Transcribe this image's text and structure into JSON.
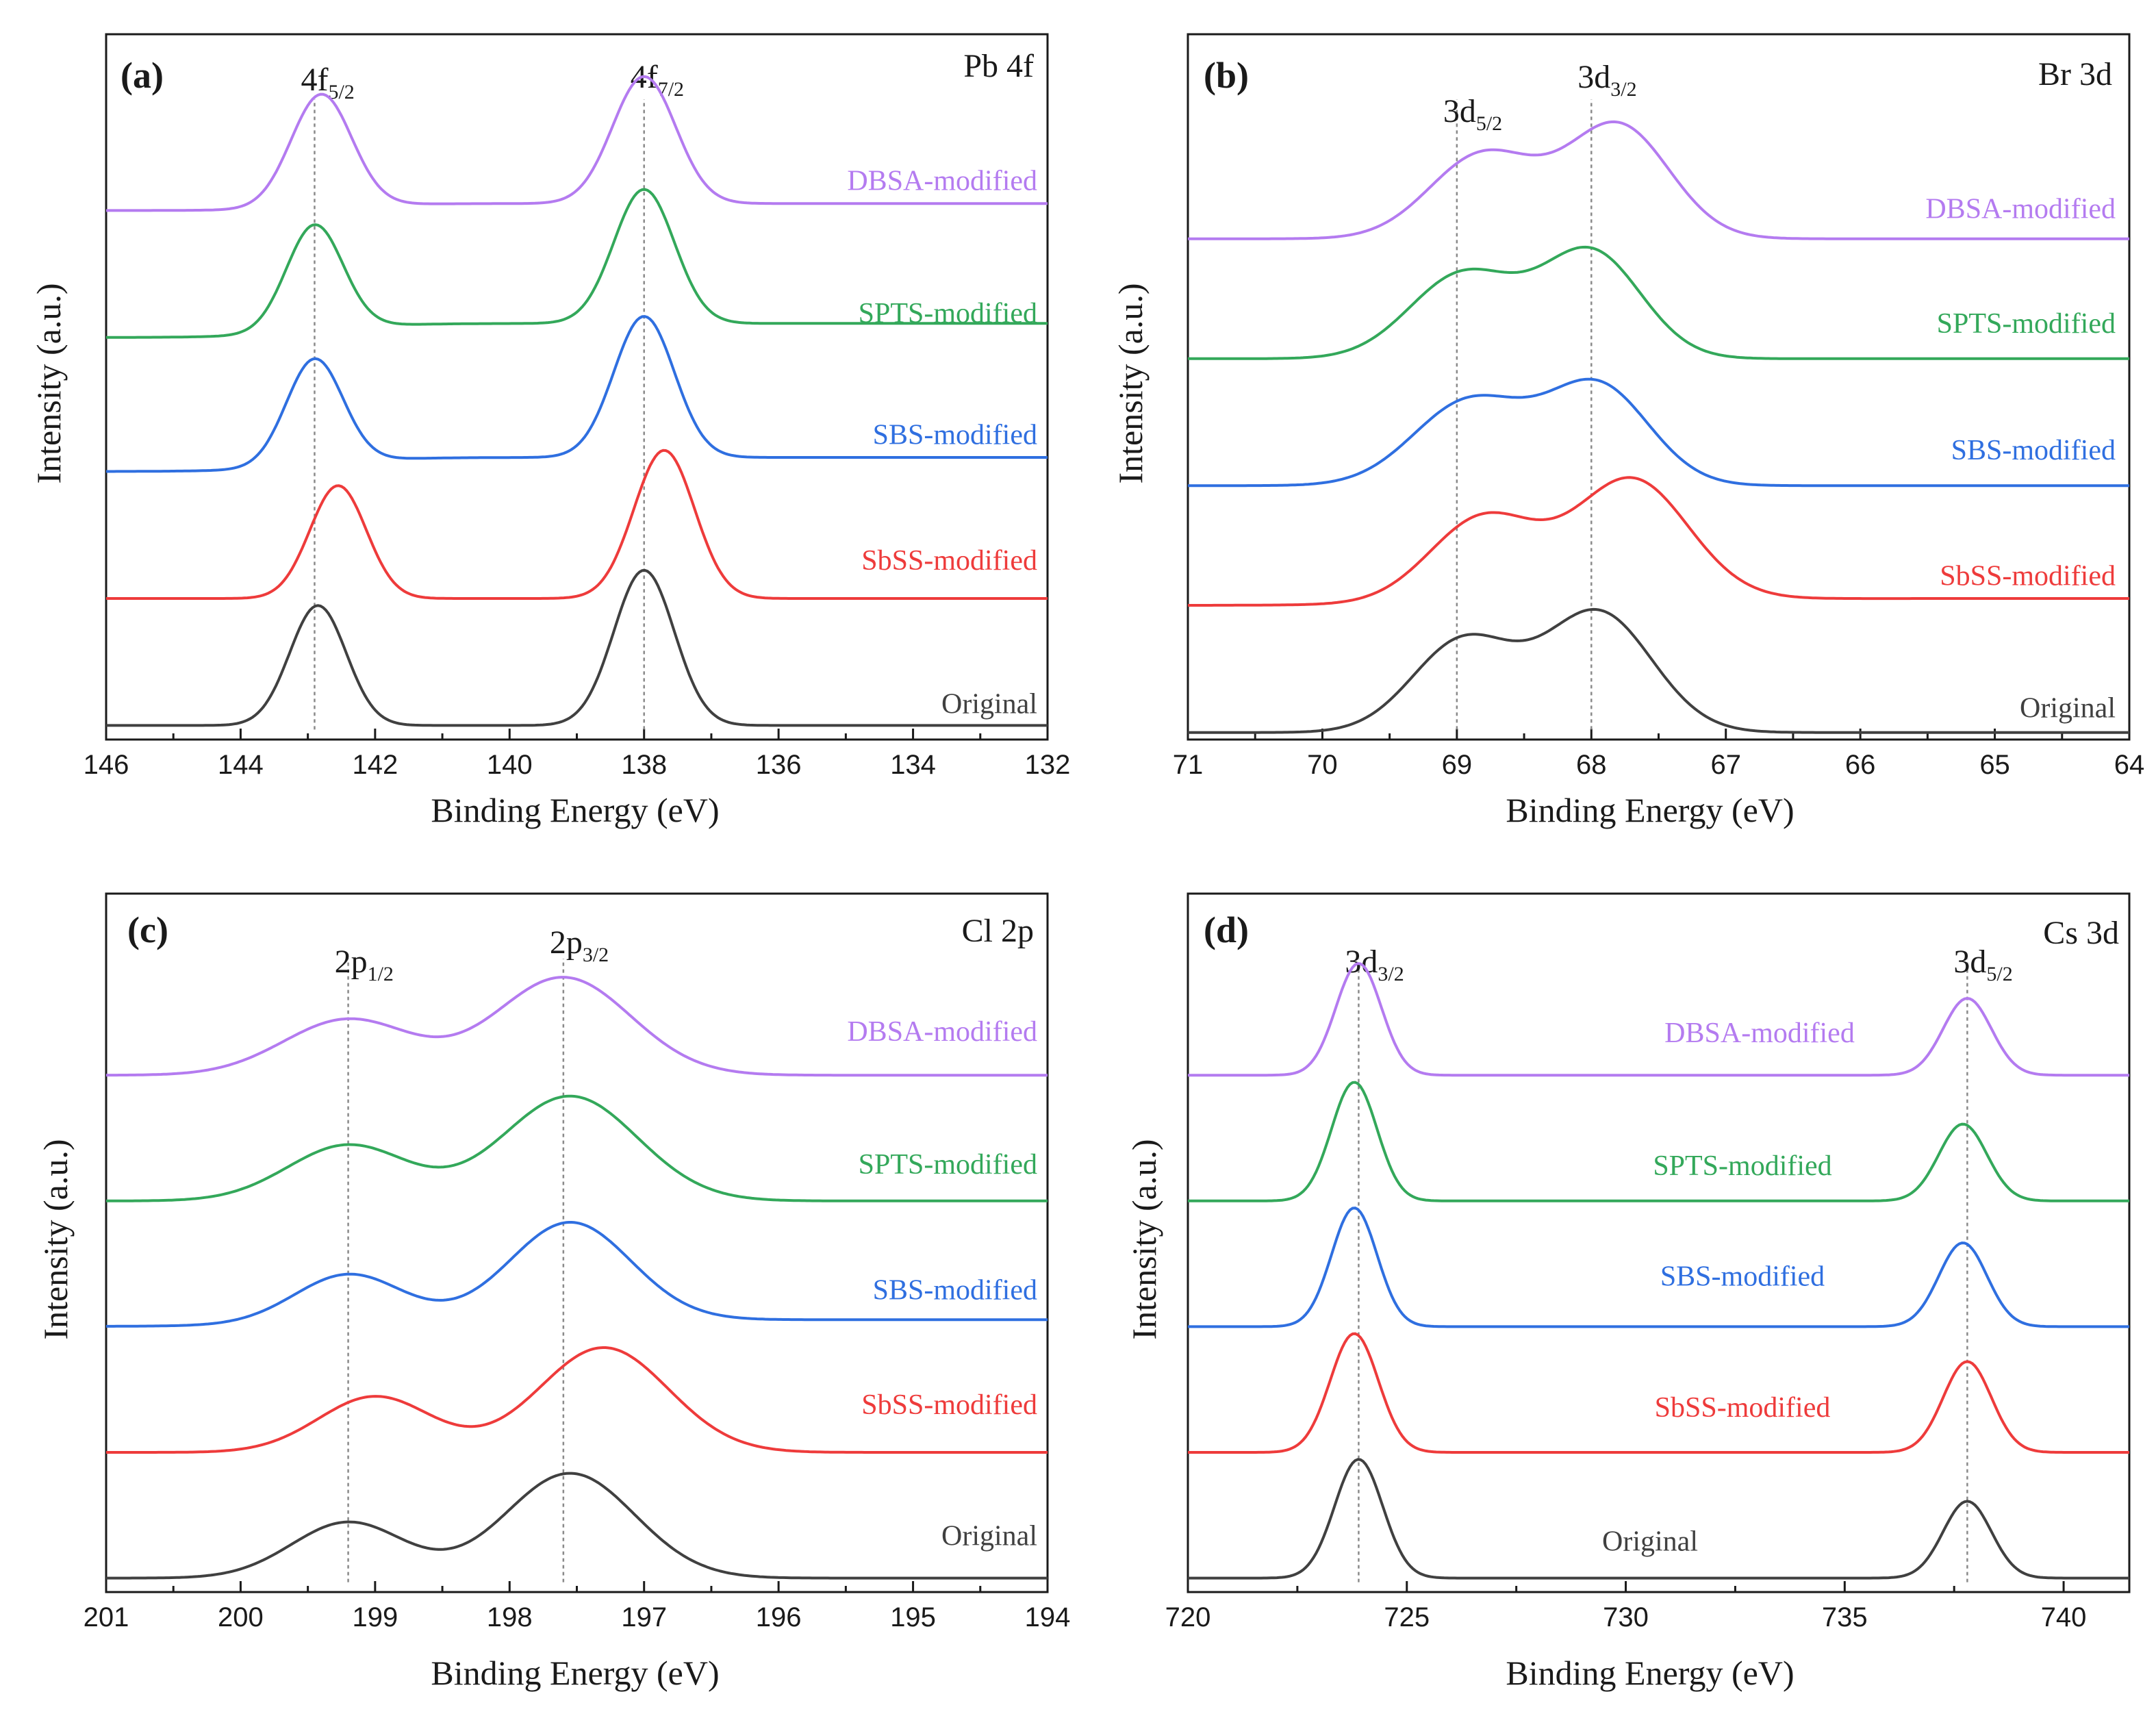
{
  "figure": {
    "colors": {
      "Original": "#404040",
      "SbSS-modified": "#ee3b3b",
      "SBS-modified": "#2f6fe0",
      "SPTS-modified": "#33a85a",
      "DBSA-modified": "#b47bf0",
      "axis": "#1a1a1a",
      "guide": "#8a8a8a"
    }
  },
  "chart_data": [
    {
      "type": "line",
      "panel": "(a)",
      "element": "Pb 4f",
      "title": "Pb 4f",
      "xlabel": "Binding Energy (eV)",
      "ylabel": "Intensity (a.u.)",
      "xlim": [
        146,
        132
      ],
      "xticks": [
        146,
        144,
        142,
        140,
        138,
        136,
        134,
        132
      ],
      "xtick_labels": [
        "146",
        "144",
        "142",
        "140",
        "138",
        "136",
        "134",
        "132"
      ],
      "ylim": [
        0,
        1
      ],
      "guides": [
        142.9,
        138.0
      ],
      "peak_labels": [
        {
          "x": 142.9,
          "main": "4f",
          "sub": "5/2"
        },
        {
          "x": 138.0,
          "main": "4f",
          "sub": "7/2"
        }
      ],
      "series": [
        {
          "name": "Original",
          "baseline": 0.02,
          "tail": 0,
          "peaks": [
            {
              "c": 142.85,
              "a": 0.17,
              "w": 0.42
            },
            {
              "c": 138.0,
              "a": 0.22,
              "w": 0.45
            }
          ]
        },
        {
          "name": "SbSS-modified",
          "baseline": 0.2,
          "tail": 0,
          "peaks": [
            {
              "c": 142.55,
              "a": 0.16,
              "w": 0.42
            },
            {
              "c": 137.7,
              "a": 0.21,
              "w": 0.45
            }
          ]
        },
        {
          "name": "SBS-modified",
          "baseline": 0.38,
          "tail": 0.02,
          "peaks": [
            {
              "c": 142.9,
              "a": 0.15,
              "w": 0.42
            },
            {
              "c": 138.0,
              "a": 0.2,
              "w": 0.45
            }
          ]
        },
        {
          "name": "SPTS-modified",
          "baseline": 0.57,
          "tail": 0.02,
          "peaks": [
            {
              "c": 142.9,
              "a": 0.15,
              "w": 0.42
            },
            {
              "c": 138.0,
              "a": 0.19,
              "w": 0.45
            }
          ]
        },
        {
          "name": "DBSA-modified",
          "baseline": 0.75,
          "tail": 0.01,
          "peaks": [
            {
              "c": 142.8,
              "a": 0.16,
              "w": 0.45
            },
            {
              "c": 138.0,
              "a": 0.18,
              "w": 0.47
            }
          ]
        }
      ]
    },
    {
      "type": "line",
      "panel": "(b)",
      "element": "Br 3d",
      "title": "Br 3d",
      "xlabel": "Binding Energy (eV)",
      "ylabel": "Intensity (a.u.)",
      "xlim": [
        71,
        64
      ],
      "xticks": [
        71,
        70,
        69,
        68,
        67,
        66,
        65,
        64
      ],
      "xtick_labels": [
        "71",
        "70",
        "69",
        "68",
        "67",
        "66",
        "65",
        "64"
      ],
      "ylim": [
        0,
        1
      ],
      "guides": [
        69.0,
        68.0
      ],
      "peak_labels": [
        {
          "x": 69.0,
          "main": "3d",
          "sub": "5/2"
        },
        {
          "x": 68.0,
          "main": "3d",
          "sub": "3/2"
        }
      ],
      "series": [
        {
          "name": "Original",
          "baseline": 0.01,
          "tail": 0,
          "peaks": [
            {
              "c": 68.95,
              "a": 0.13,
              "w": 0.38
            },
            {
              "c": 67.95,
              "a": 0.17,
              "w": 0.4
            }
          ]
        },
        {
          "name": "SbSS-modified",
          "baseline": 0.19,
          "tail": 0.01,
          "peaks": [
            {
              "c": 68.8,
              "a": 0.12,
              "w": 0.4
            },
            {
              "c": 67.7,
              "a": 0.17,
              "w": 0.42
            }
          ]
        },
        {
          "name": "SBS-modified",
          "baseline": 0.36,
          "tail": 0,
          "peaks": [
            {
              "c": 68.9,
              "a": 0.12,
              "w": 0.42
            },
            {
              "c": 67.95,
              "a": 0.14,
              "w": 0.38
            }
          ]
        },
        {
          "name": "SPTS-modified",
          "baseline": 0.54,
          "tail": 0,
          "peaks": [
            {
              "c": 68.95,
              "a": 0.12,
              "w": 0.4
            },
            {
              "c": 68.0,
              "a": 0.15,
              "w": 0.37
            }
          ]
        },
        {
          "name": "DBSA-modified",
          "baseline": 0.71,
          "tail": 0,
          "peaks": [
            {
              "c": 68.8,
              "a": 0.12,
              "w": 0.4
            },
            {
              "c": 67.8,
              "a": 0.16,
              "w": 0.38
            }
          ]
        }
      ]
    },
    {
      "type": "line",
      "panel": "(c)",
      "element": "Cl 2p",
      "title": "Cl 2p",
      "xlabel": "Binding Energy (eV)",
      "ylabel": "Intensity (a.u.)",
      "xlim": [
        201,
        194
      ],
      "xticks": [
        201,
        200,
        199,
        198,
        197,
        196,
        195,
        194
      ],
      "xtick_labels": [
        "201",
        "200",
        "199",
        "198",
        "197",
        "196",
        "195",
        "194"
      ],
      "ylim": [
        0,
        1
      ],
      "guides": [
        199.2,
        197.6
      ],
      "peak_labels": [
        {
          "x": 199.2,
          "main": "2p",
          "sub": "1/2"
        },
        {
          "x": 197.6,
          "main": "2p",
          "sub": "3/2"
        }
      ],
      "series": [
        {
          "name": "Original",
          "baseline": 0.02,
          "tail": 0,
          "peaks": [
            {
              "c": 199.2,
              "a": 0.08,
              "w": 0.42
            },
            {
              "c": 197.55,
              "a": 0.15,
              "w": 0.48
            }
          ]
        },
        {
          "name": "SbSS-modified",
          "baseline": 0.2,
          "tail": 0,
          "peaks": [
            {
              "c": 199.0,
              "a": 0.08,
              "w": 0.42
            },
            {
              "c": 197.3,
              "a": 0.15,
              "w": 0.48
            }
          ]
        },
        {
          "name": "SBS-modified",
          "baseline": 0.38,
          "tail": 0.01,
          "peaks": [
            {
              "c": 199.2,
              "a": 0.07,
              "w": 0.4
            },
            {
              "c": 197.55,
              "a": 0.14,
              "w": 0.45
            }
          ]
        },
        {
          "name": "SPTS-modified",
          "baseline": 0.56,
          "tail": 0,
          "peaks": [
            {
              "c": 199.2,
              "a": 0.08,
              "w": 0.45
            },
            {
              "c": 197.55,
              "a": 0.15,
              "w": 0.5
            }
          ]
        },
        {
          "name": "DBSA-modified",
          "baseline": 0.74,
          "tail": 0,
          "peaks": [
            {
              "c": 199.2,
              "a": 0.08,
              "w": 0.48
            },
            {
              "c": 197.6,
              "a": 0.14,
              "w": 0.5
            }
          ]
        }
      ]
    },
    {
      "type": "line",
      "panel": "(d)",
      "element": "Cs 3d",
      "title": "Cs 3d",
      "xlabel": "Binding Energy (eV)",
      "ylabel": "Intensity (a.u.)",
      "xlim": [
        720,
        741.5
      ],
      "xticks": [
        720,
        725,
        730,
        735,
        740
      ],
      "xtick_labels": [
        "720",
        "725",
        "730",
        "735",
        "740"
      ],
      "ylim": [
        0,
        1
      ],
      "guides": [
        723.9,
        737.8
      ],
      "peak_labels": [
        {
          "x": 723.9,
          "main": "3d",
          "sub": "3/2"
        },
        {
          "x": 737.8,
          "main": "3d",
          "sub": "5/2"
        }
      ],
      "series": [
        {
          "name": "Original",
          "baseline": 0.02,
          "tail": 0,
          "peaks": [
            {
              "c": 723.9,
              "a": 0.17,
              "w": 0.55
            },
            {
              "c": 737.8,
              "a": 0.11,
              "w": 0.55
            }
          ]
        },
        {
          "name": "SbSS-modified",
          "baseline": 0.2,
          "tail": 0,
          "peaks": [
            {
              "c": 723.8,
              "a": 0.17,
              "w": 0.55
            },
            {
              "c": 737.8,
              "a": 0.13,
              "w": 0.55
            }
          ]
        },
        {
          "name": "SBS-modified",
          "baseline": 0.38,
          "tail": 0,
          "peaks": [
            {
              "c": 723.8,
              "a": 0.17,
              "w": 0.52
            },
            {
              "c": 737.7,
              "a": 0.12,
              "w": 0.55
            }
          ]
        },
        {
          "name": "SPTS-modified",
          "baseline": 0.56,
          "tail": 0,
          "peaks": [
            {
              "c": 723.8,
              "a": 0.17,
              "w": 0.52
            },
            {
              "c": 737.7,
              "a": 0.11,
              "w": 0.55
            }
          ]
        },
        {
          "name": "DBSA-modified",
          "baseline": 0.74,
          "tail": 0,
          "peaks": [
            {
              "c": 723.9,
              "a": 0.16,
              "w": 0.52
            },
            {
              "c": 737.8,
              "a": 0.11,
              "w": 0.55
            }
          ]
        }
      ]
    }
  ]
}
